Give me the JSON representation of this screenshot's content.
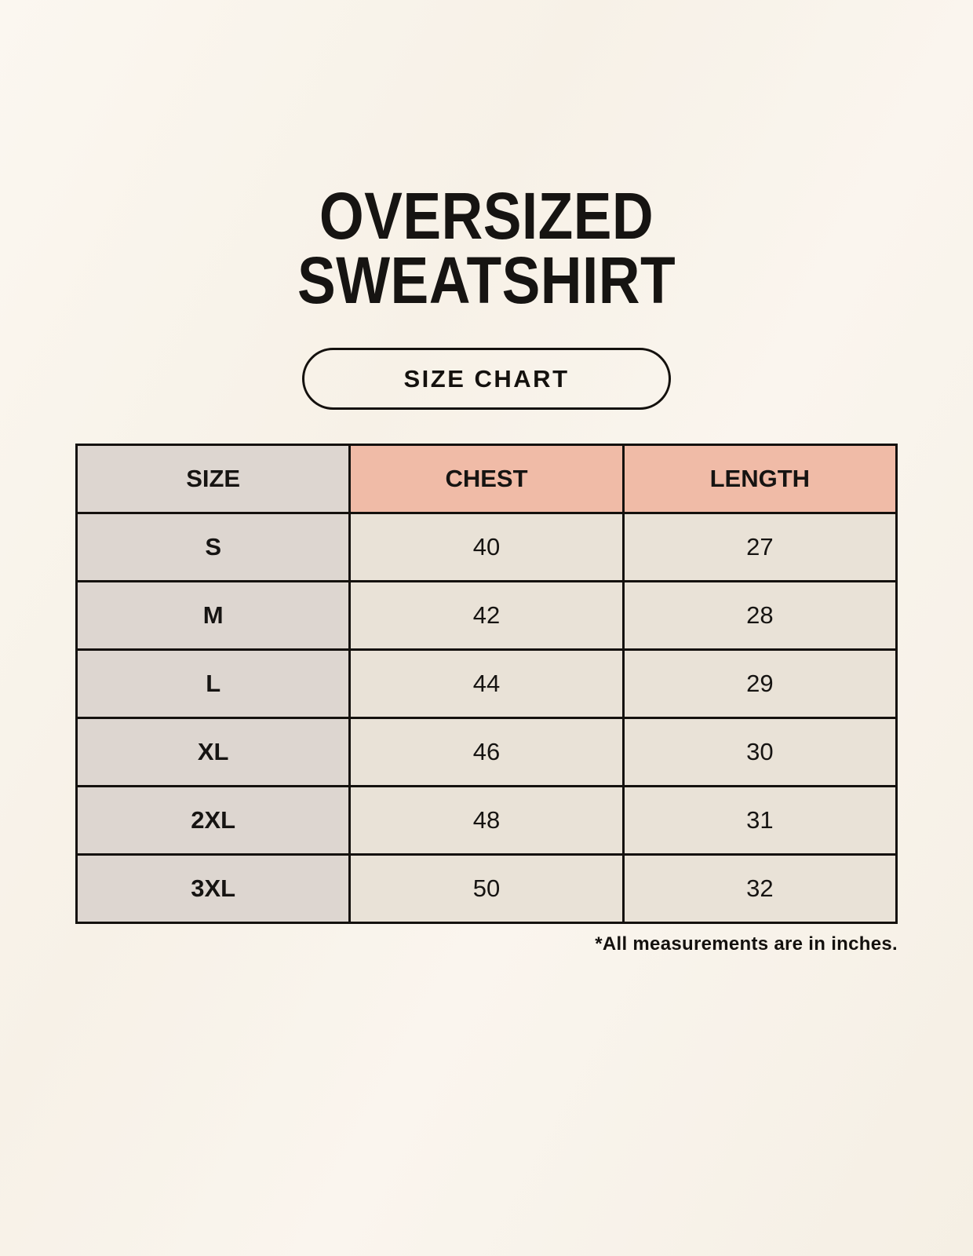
{
  "header": {
    "title_line1": "OVERSIZED",
    "title_line2": "SWEATSHIRT",
    "button_label": "SIZE CHART"
  },
  "chart_data": {
    "type": "table",
    "title": "OVERSIZED SWEATSHIRT",
    "subtitle": "SIZE CHART",
    "columns": [
      "SIZE",
      "CHEST",
      "LENGTH"
    ],
    "units": "inches",
    "rows": [
      {
        "size": "S",
        "chest": 40,
        "length": 27
      },
      {
        "size": "M",
        "chest": 42,
        "length": 28
      },
      {
        "size": "L",
        "chest": 44,
        "length": 29
      },
      {
        "size": "XL",
        "chest": 46,
        "length": 30
      },
      {
        "size": "2XL",
        "chest": 48,
        "length": 31
      },
      {
        "size": "3XL",
        "chest": 50,
        "length": 32
      }
    ]
  },
  "footnote": "*All measurements are in inches.",
  "colors": {
    "page_background": "#F8F3EA",
    "header_accent_pink": "#F0BBA7",
    "size_column_gray": "#DDD6D0",
    "data_cell_cream": "#E9E2D7",
    "border_black": "#14110E",
    "text_black": "#161412"
  }
}
